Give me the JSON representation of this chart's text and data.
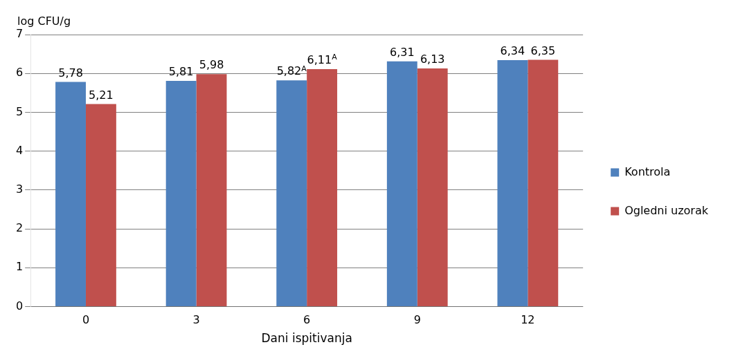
{
  "chart_data": {
    "type": "bar",
    "xlabel": "Dani ispitivanja",
    "ylabel": "log CFU/g",
    "categories": [
      "0",
      "3",
      "6",
      "9",
      "12"
    ],
    "series": [
      {
        "name": "Kontrola",
        "color": "#4f81bd",
        "values": [
          5.78,
          5.81,
          5.82,
          6.31,
          6.34
        ],
        "value_labels": [
          "5,78",
          "5,81",
          "5,82$^{A}$",
          "6,31",
          "6,34"
        ]
      },
      {
        "name": "Ogledni uzorak",
        "color": "#c0504d",
        "values": [
          5.21,
          5.98,
          6.11,
          6.13,
          6.35
        ],
        "value_labels": [
          "5,21",
          "5,98",
          "6,11$^{A}$",
          "6,13",
          "6,35"
        ]
      }
    ],
    "ylim": [
      0,
      7
    ],
    "yticks": [
      0,
      1,
      2,
      3,
      4,
      5,
      6,
      7
    ],
    "grid": "y",
    "legend": "right"
  }
}
